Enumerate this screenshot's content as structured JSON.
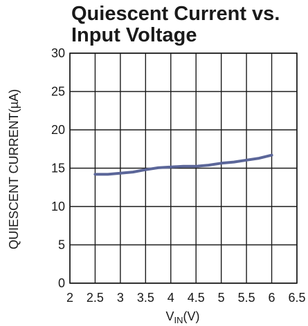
{
  "chart_data": {
    "type": "line",
    "title_lines": [
      "Quiescent Current vs.",
      "Input Voltage"
    ],
    "xlabel": {
      "main": "V",
      "sub": "IN",
      "unit": "(V)"
    },
    "ylabel": "QUIESCENT CURRENT(µA)",
    "xlim": [
      2,
      6.5
    ],
    "ylim": [
      0,
      30
    ],
    "x_ticks": [
      2,
      2.5,
      3,
      3.5,
      4,
      4.5,
      5,
      5.5,
      6,
      6.5
    ],
    "x_tick_labels": [
      "2",
      "2.5",
      "3",
      "3.5",
      "4",
      "4.5",
      "5",
      "5.5",
      "6",
      "6.5"
    ],
    "y_ticks": [
      0,
      5,
      10,
      15,
      20,
      25,
      30
    ],
    "y_tick_labels": [
      "0",
      "5",
      "10",
      "15",
      "20",
      "25",
      "30"
    ],
    "grid": true,
    "series": [
      {
        "color": "#5b6699",
        "x": [
          2.5,
          2.75,
          3.0,
          3.25,
          3.5,
          3.75,
          4.0,
          4.25,
          4.5,
          4.75,
          5.0,
          5.25,
          5.5,
          5.75,
          6.0
        ],
        "y": [
          14.2,
          14.2,
          14.35,
          14.5,
          14.8,
          15.05,
          15.15,
          15.25,
          15.25,
          15.4,
          15.65,
          15.8,
          16.05,
          16.3,
          16.7
        ]
      }
    ]
  }
}
